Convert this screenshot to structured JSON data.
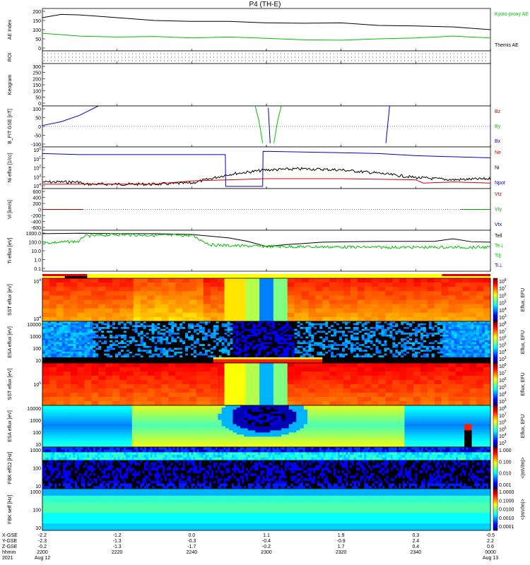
{
  "title": "P4 (TH-E)",
  "footer": {
    "row_labels": [
      "X-GSE",
      "Y-GSE",
      "Z-GSE",
      "hhmm",
      "2021"
    ],
    "ticks": [
      {
        "x": "-2.2",
        "y": "-2.3",
        "z": "-0.2",
        "t": "2200",
        "d": "Aug 12"
      },
      {
        "x": "-1.2",
        "y": "-1.3",
        "z": "-1.3",
        "t": "2220",
        "d": ""
      },
      {
        "x": "0.0",
        "y": "-0.3",
        "z": "-1.7",
        "t": "2240",
        "d": ""
      },
      {
        "x": "1.1",
        "y": "-0.4",
        "z": "-0.2",
        "t": "2300",
        "d": ""
      },
      {
        "x": "1.9",
        "y": "-0.9",
        "z": "1.7",
        "t": "2320",
        "d": ""
      },
      {
        "x": "0.3",
        "y": "2.4",
        "z": "0.4",
        "t": "2340",
        "d": ""
      },
      {
        "x": "-0.5",
        "y": "2.2",
        "z": "0.6",
        "t": "0000",
        "d": "Aug 13"
      }
    ]
  },
  "colors": {
    "black": "#000000",
    "green": "#00c000",
    "red": "#d00000",
    "blue": "#0000c8"
  },
  "colorbars": [
    {
      "label": "Eflux, EFU",
      "ticks": [
        "10^8",
        "10^7",
        "10^6",
        "10^5",
        "10^4",
        "10^3"
      ]
    },
    {
      "label": "Eflux, EFU",
      "ticks": [
        "10^8",
        "10^7",
        "10^6",
        "10^5",
        "10^4",
        "10^3"
      ]
    },
    {
      "label": "Eflux, EFU",
      "ticks": [
        "10^8",
        "10^7",
        "10^6",
        "10^5",
        "10^4",
        "10^3"
      ]
    },
    {
      "label": "Eflux, EFU",
      "ticks": [
        "10^8",
        "10^7",
        "10^6",
        "10^5",
        "10^4",
        "10^3"
      ]
    },
    {
      "label": "<|mV/m|>",
      "ticks": [
        "1.000",
        "0.100",
        "0.010",
        "0.001"
      ]
    },
    {
      "label": "<|mV/m|>",
      "ticks": [
        "1.0000",
        "0.1000",
        "0.0100",
        "0.0010",
        "0.0001"
      ]
    }
  ],
  "chart_data": [
    {
      "id": "ae",
      "type": "line",
      "ylabel": "AE Index",
      "yticks": [
        "200",
        "150",
        "100",
        "50",
        "0"
      ],
      "ylim": [
        -20,
        210
      ],
      "legend": [
        "Kyoto proxy AE",
        "Themis AE"
      ],
      "series": [
        {
          "name": "Themis AE",
          "color": "#000000",
          "x": [
            2200,
            2205,
            2210,
            2220,
            2230,
            2240,
            2250,
            2300,
            2310,
            2320,
            2330,
            2340,
            2350,
            2400
          ],
          "y": [
            160,
            178,
            175,
            160,
            145,
            140,
            140,
            132,
            130,
            132,
            118,
            115,
            110,
            95
          ]
        },
        {
          "name": "Kyoto proxy AE",
          "color": "#00c000",
          "x": [
            2200,
            2205,
            2210,
            2220,
            2230,
            2240,
            2250,
            2300,
            2310,
            2320,
            2330,
            2340,
            2350,
            2400
          ],
          "y": [
            75,
            68,
            60,
            55,
            58,
            50,
            55,
            48,
            40,
            38,
            45,
            50,
            60,
            50
          ]
        }
      ]
    },
    {
      "id": "roi",
      "type": "table",
      "ylabel": "ROI"
    },
    {
      "id": "keogram",
      "type": "line",
      "ylabel": "Keogram",
      "yticks": [
        "300",
        "250",
        "200",
        "150",
        "100",
        "50",
        "0"
      ],
      "ylim": [
        0,
        300
      ]
    },
    {
      "id": "bfit",
      "type": "line",
      "ylabel": "B_FIT GSE [nT]",
      "yticks": [
        "100",
        "50",
        "0",
        "-50",
        "-100"
      ],
      "ylim": [
        -120,
        100
      ],
      "legend": [
        "Bz",
        "By",
        "Bx"
      ],
      "series": [
        {
          "name": "Bx",
          "color": "#0000c8",
          "x": [
            2200,
            2205,
            2210,
            2215
          ],
          "y": [
            -5,
            15,
            50,
            100
          ]
        },
        {
          "name": "By",
          "color": "#00c000",
          "x": [
            2257,
            2258,
            2259
          ],
          "y": [
            100,
            20,
            -100
          ]
        },
        {
          "name": "By",
          "color": "#00c000",
          "x": [
            2302,
            2303,
            2304
          ],
          "y": [
            -100,
            20,
            100
          ]
        },
        {
          "name": "Bx",
          "color": "#0000c8",
          "x": [
            2300.5,
            2301
          ],
          "y": [
            90,
            -100
          ]
        },
        {
          "name": "Bx",
          "color": "#0000c8",
          "x": [
            2332,
            2333
          ],
          "y": [
            -100,
            100
          ]
        }
      ]
    },
    {
      "id": "density",
      "type": "line",
      "ylabel": "Ni eflux [1/cc]",
      "yticks": [
        "10^0",
        "10^1",
        "10^2",
        "10^3",
        "10^4"
      ],
      "ylim": [
        -1.2,
        0.7
      ],
      "legend": [
        "Ne",
        "Ni",
        "Npot"
      ],
      "series": [
        {
          "name": "Npot",
          "color": "#0000c8",
          "x": [
            2200,
            2210,
            2230,
            2249,
            2249.1,
            2259,
            2259.1,
            2330,
            2340,
            2400
          ],
          "y": [
            0.4,
            0.35,
            0.35,
            0.35,
            -1.1,
            -1.1,
            0.5,
            0.4,
            0.3,
            0.2
          ]
        },
        {
          "name": "Ni",
          "color": "#000000",
          "x": [
            2200,
            2210,
            2211,
            2230,
            2240,
            2250,
            2300,
            2310,
            2320,
            2330,
            2340,
            2350,
            2400
          ],
          "y": [
            -0.9,
            -0.9,
            -1.0,
            -1.0,
            -0.95,
            -0.55,
            -0.35,
            -0.3,
            -0.35,
            -0.5,
            -0.7,
            -0.8,
            -0.75
          ]
        },
        {
          "name": "Ne",
          "color": "#d00000",
          "x": [
            2200,
            2210,
            2230,
            2240,
            2250,
            2300,
            2320,
            2340,
            2342,
            2350,
            2400
          ],
          "y": [
            -1.0,
            -1.0,
            -1.0,
            -0.85,
            -0.8,
            -0.75,
            -0.75,
            -0.8,
            -0.95,
            -0.9,
            -0.95
          ]
        }
      ]
    },
    {
      "id": "velocity",
      "type": "line",
      "ylabel": "Vi [km/s]",
      "yticks": [
        "600",
        "400",
        "200",
        "0",
        "-200",
        "-400",
        "-600"
      ],
      "ylim": [
        -700,
        700
      ],
      "legend": [
        "Vtz",
        "Vty",
        "Vtx"
      ],
      "series": [
        {
          "name": "Vtz",
          "color": "#d00000",
          "x": [
            2200,
            2211
          ],
          "y": [
            0,
            0
          ]
        },
        {
          "name": "Vty",
          "color": "#00c000",
          "x": [
            2352,
            2400
          ],
          "y": [
            0,
            0
          ]
        }
      ]
    },
    {
      "id": "temp",
      "type": "line",
      "ylabel": "Ti eflux [eV]",
      "yticks": [
        "1000.0",
        "100.0",
        "10.0",
        "1.0",
        "0.1"
      ],
      "ylim": [
        -1.2,
        3.6
      ],
      "legend": [
        "Tell",
        "Te⊥",
        "Ti∥",
        "Ti⊥"
      ],
      "series": [
        {
          "name": "Tell",
          "color": "#000000",
          "x": [
            2200,
            2210,
            2220,
            2230,
            2240,
            2250,
            2255,
            2300,
            2305,
            2315,
            2330,
            2345,
            2350,
            2355,
            2400
          ],
          "y": [
            3.2,
            3.25,
            3.2,
            3.2,
            3.1,
            2.7,
            2.3,
            1.7,
            1.9,
            2.2,
            2.3,
            2.3,
            2.6,
            2.25,
            2.2
          ]
        },
        {
          "name": "Ti∥",
          "color": "#00c000",
          "x": [
            2200,
            2210,
            2211,
            2220,
            2230,
            2240,
            2245,
            2250,
            2300,
            2330,
            2350,
            2400
          ],
          "y": [
            2.1,
            2.3,
            2.9,
            3.1,
            3.0,
            3.0,
            1.9,
            1.8,
            1.7,
            1.6,
            1.6,
            1.6
          ]
        }
      ]
    },
    {
      "id": "sst_e",
      "type": "heatmap",
      "ylabel": "SST eflux [eV]",
      "yticks": [
        "10^4",
        "10^4"
      ]
    },
    {
      "id": "esa_e",
      "type": "heatmap",
      "ylabel": "ESA eflux [eV]",
      "yticks": [
        "10000",
        "1000",
        "100",
        "10"
      ]
    },
    {
      "id": "sst_i",
      "type": "heatmap",
      "ylabel": "SST eflux [eV]",
      "yticks": [
        "10^5"
      ]
    },
    {
      "id": "esa_i",
      "type": "heatmap",
      "ylabel": "ESA eflux [eV]",
      "yticks": [
        "10000",
        "1000",
        "100",
        "10"
      ]
    },
    {
      "id": "fbk1",
      "type": "heatmap",
      "ylabel": "FBK eff12 [Hz]",
      "yticks": [
        "1000",
        "100",
        "10"
      ]
    },
    {
      "id": "fbk2",
      "type": "heatmap",
      "ylabel": "FBK seff [Hz]",
      "yticks": [
        "1000",
        "100",
        "10"
      ]
    }
  ]
}
